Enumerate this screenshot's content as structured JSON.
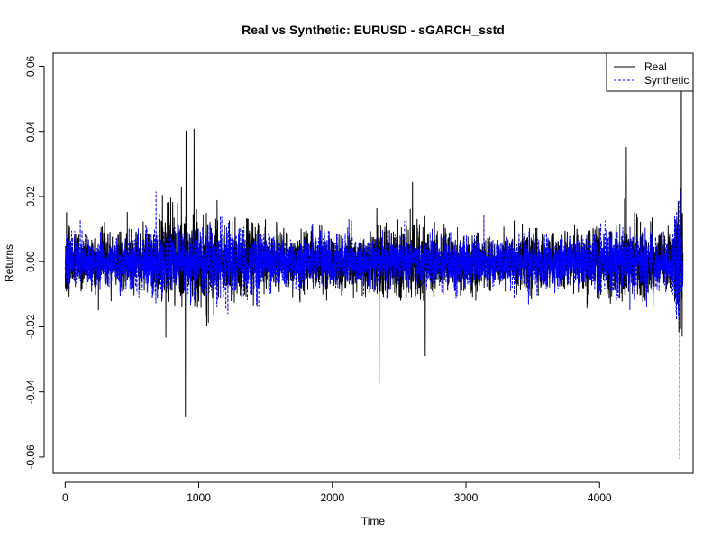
{
  "chart_data": {
    "type": "line",
    "title": "Real vs Synthetic: EURUSD - sGARCH_sstd",
    "xlabel": "Time",
    "ylabel": "Returns",
    "xlim": [
      -90,
      4700
    ],
    "ylim": [
      -0.065,
      0.064
    ],
    "x_ticks": [
      0,
      1000,
      2000,
      3000,
      4000
    ],
    "x_tick_labels": [
      "0",
      "1000",
      "2000",
      "3000",
      "4000"
    ],
    "y_ticks": [
      -0.06,
      -0.04,
      -0.02,
      0.0,
      0.02,
      0.04,
      0.06
    ],
    "y_tick_labels": [
      "-0.06",
      "-0.04",
      "-0.02",
      "0.00",
      "0.02",
      "0.04",
      "0.06"
    ],
    "n_points": 4625,
    "legend_position": "top-right",
    "grid": false,
    "series": [
      {
        "name": "Real",
        "color": "#000000",
        "line_style": "solid",
        "notable_points": [
          {
            "x": 900,
            "y": -0.0475
          },
          {
            "x": 905,
            "y": 0.0402
          },
          {
            "x": 965,
            "y": 0.0408
          },
          {
            "x": 2350,
            "y": -0.0372
          },
          {
            "x": 2600,
            "y": 0.0245
          },
          {
            "x": 2695,
            "y": -0.029
          },
          {
            "x": 4200,
            "y": 0.0352
          },
          {
            "x": 4612,
            "y": 0.064
          },
          {
            "x": 4618,
            "y": -0.023
          }
        ]
      },
      {
        "name": "Synthetic",
        "color": "#0000ff",
        "line_style": "dashed",
        "notable_points": [
          {
            "x": 680,
            "y": 0.0215
          },
          {
            "x": 2540,
            "y": 0.0125
          },
          {
            "x": 4600,
            "y": -0.0605
          },
          {
            "x": 4605,
            "y": 0.0225
          }
        ]
      }
    ]
  }
}
